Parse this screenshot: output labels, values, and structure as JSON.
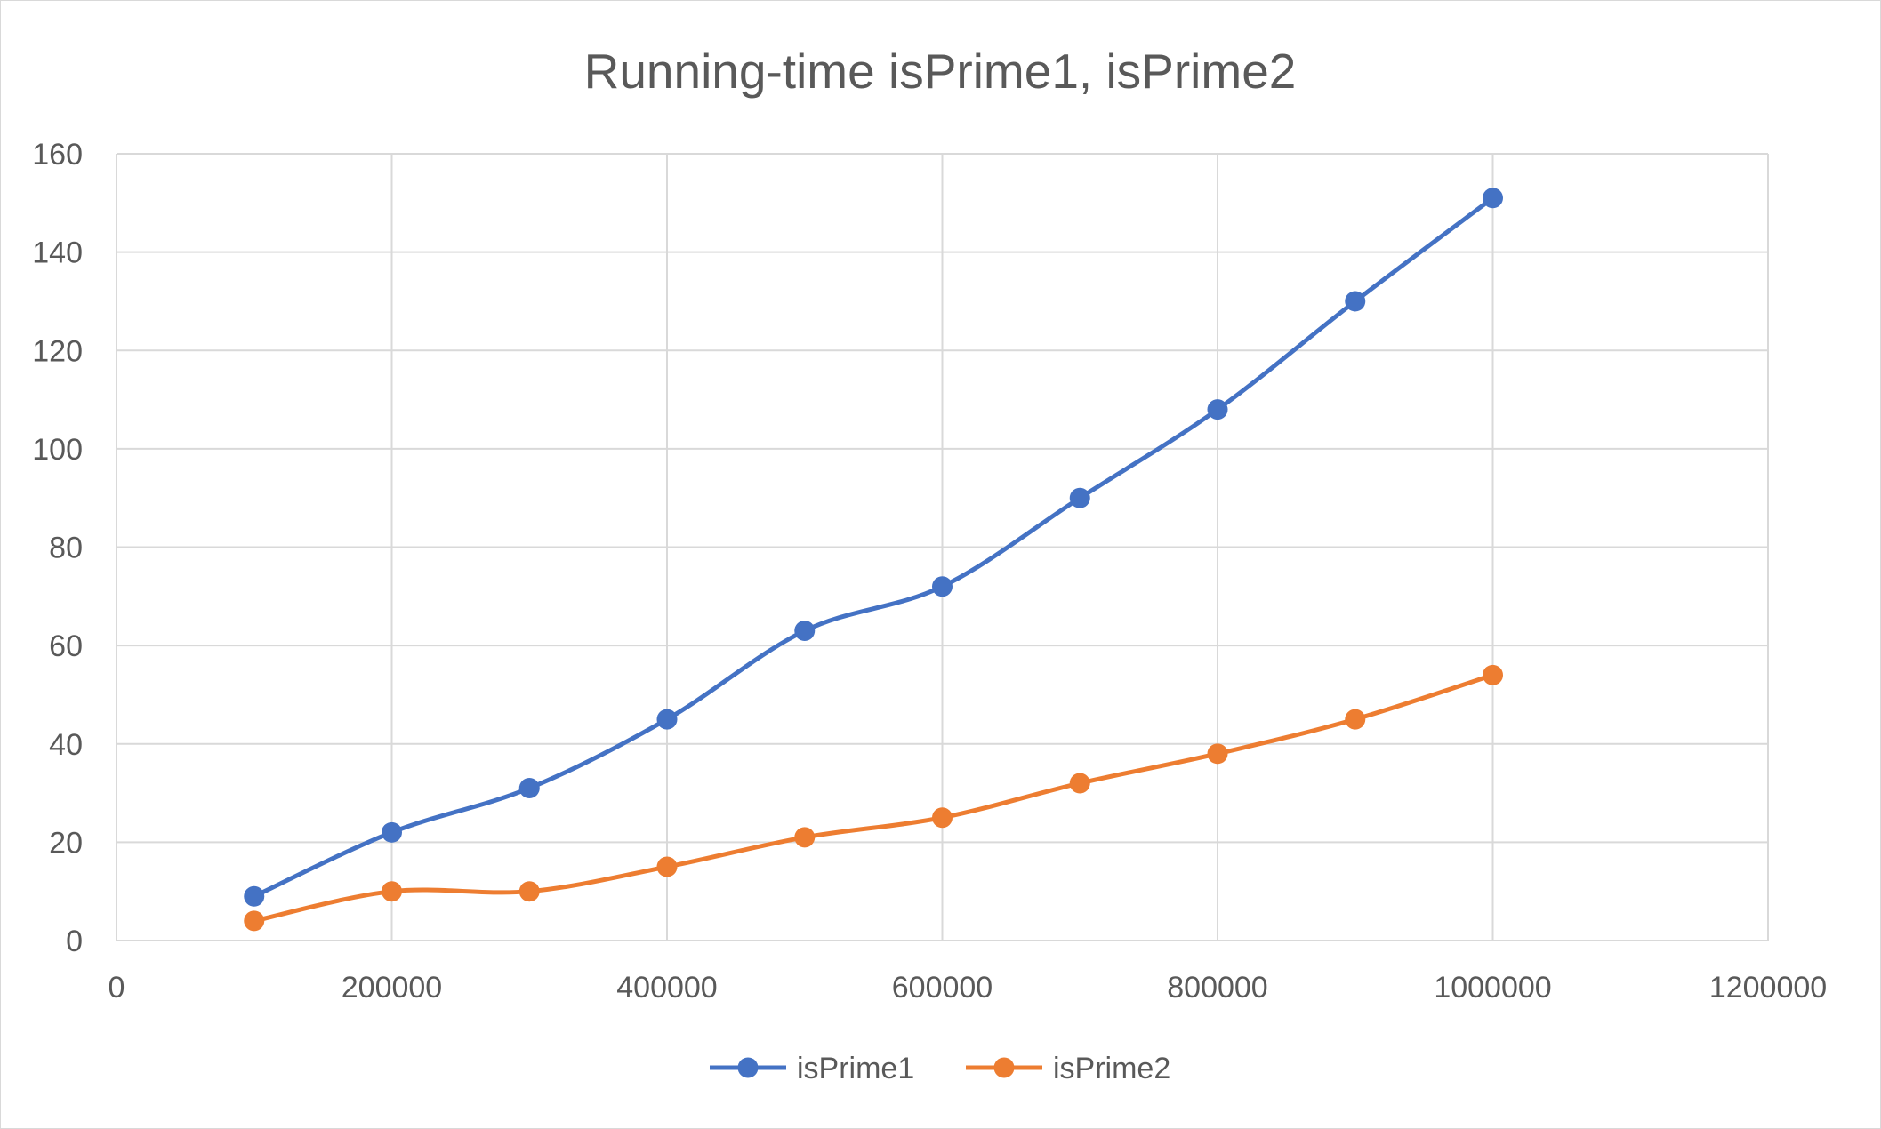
{
  "chart_data": {
    "type": "scatter",
    "title": "Running-time isPrime1, isPrime2",
    "xlabel": "",
    "ylabel": "",
    "xlim": [
      0,
      1200000
    ],
    "ylim": [
      0,
      160
    ],
    "x_ticks": [
      "0",
      "200000",
      "400000",
      "600000",
      "800000",
      "1000000",
      "1200000"
    ],
    "y_ticks": [
      "0",
      "20",
      "40",
      "60",
      "80",
      "100",
      "120",
      "140",
      "160"
    ],
    "grid": true,
    "smoothed_lines": true,
    "markers": true,
    "legend_position": "bottom",
    "x": [
      100000,
      200000,
      300000,
      400000,
      500000,
      600000,
      700000,
      800000,
      900000,
      1000000
    ],
    "series": [
      {
        "name": "isPrime1",
        "color": "#4472C4",
        "values": [
          9,
          22,
          31,
          45,
          63,
          72,
          90,
          108,
          130,
          151
        ]
      },
      {
        "name": "isPrime2",
        "color": "#ED7D31",
        "values": [
          4,
          10,
          10,
          15,
          21,
          25,
          32,
          38,
          45,
          54
        ]
      }
    ]
  }
}
